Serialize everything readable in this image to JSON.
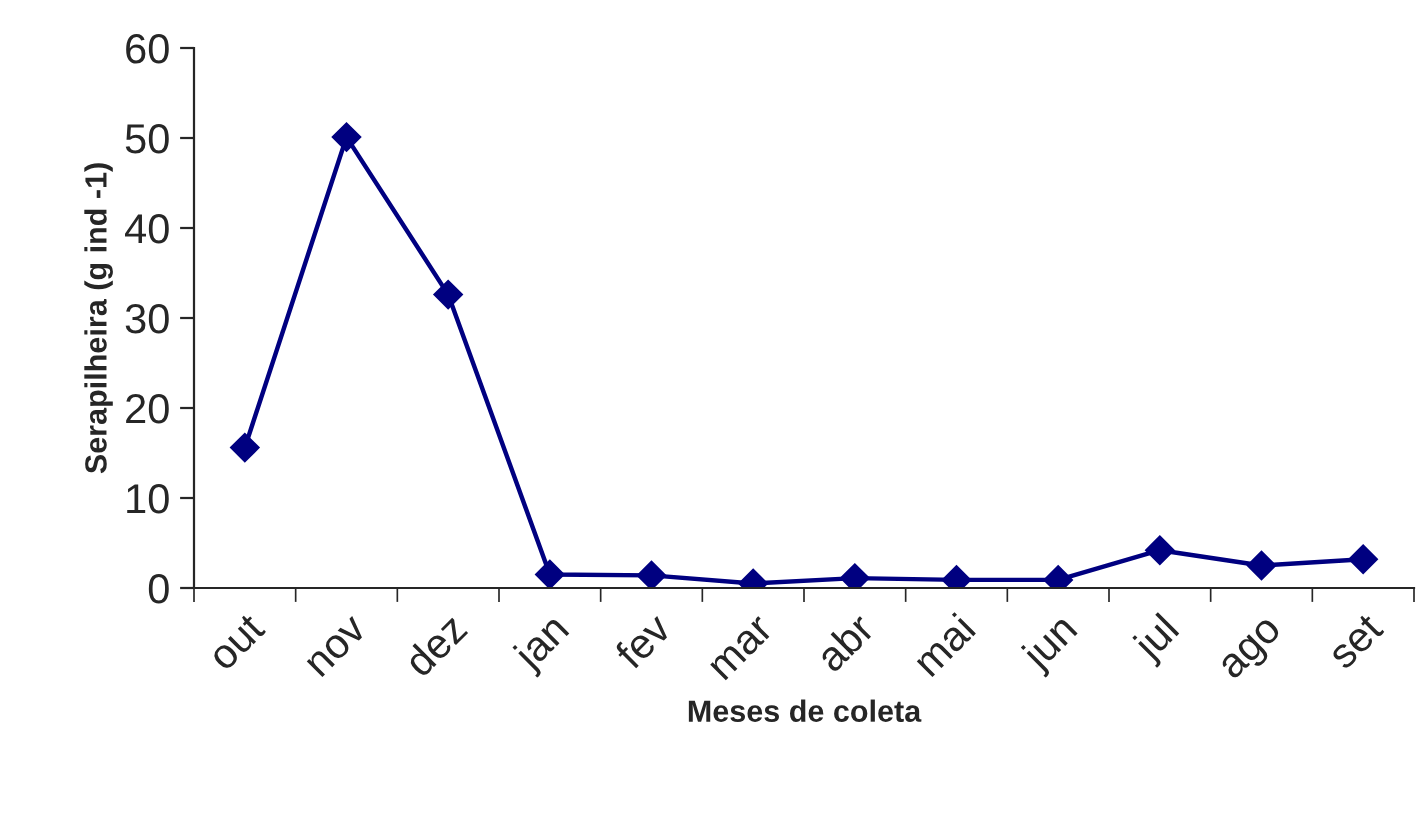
{
  "chart_data": {
    "type": "line",
    "xlabel": "Meses de coleta",
    "ylabel": "Serapilheira (g ind -1)",
    "categories": [
      "out",
      "nov",
      "dez",
      "jan",
      "fev",
      "mar",
      "abr",
      "mai",
      "jun",
      "jul",
      "ago",
      "set"
    ],
    "series": [
      {
        "color": "#000080",
        "values": [
          15.6,
          50.1,
          32.6,
          1.5,
          1.4,
          0.5,
          1.1,
          0.9,
          0.9,
          4.2,
          2.5,
          3.2
        ]
      }
    ],
    "ylim": [
      0,
      60
    ],
    "yticks": [
      0,
      10,
      20,
      30,
      40,
      50,
      60
    ],
    "marker": "diamond",
    "line_style": "solid"
  }
}
